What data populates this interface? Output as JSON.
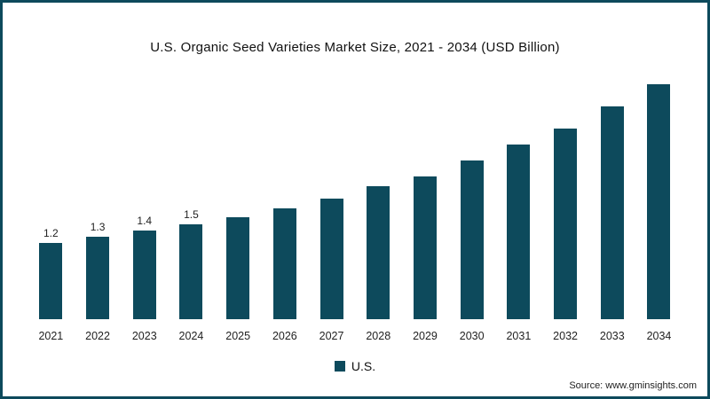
{
  "chart_data": {
    "type": "bar",
    "title": "U.S. Organic Seed Varieties Market Size, 2021 - 2034 (USD Billion)",
    "categories": [
      "2021",
      "2022",
      "2023",
      "2024",
      "2025",
      "2026",
      "2027",
      "2028",
      "2029",
      "2030",
      "2031",
      "2032",
      "2033",
      "2034"
    ],
    "values": [
      1.2,
      1.3,
      1.4,
      1.5,
      1.6,
      1.75,
      1.9,
      2.1,
      2.25,
      2.5,
      2.75,
      3.0,
      3.35,
      3.7
    ],
    "data_labels": [
      "1.2",
      "1.3",
      "1.4",
      "1.5",
      "",
      "",
      "",
      "",
      "",
      "",
      "",
      "",
      "",
      ""
    ],
    "xlabel": "",
    "ylabel": "",
    "ylim": [
      0,
      3.8
    ],
    "grid": false,
    "legend_position": "bottom",
    "legend_label": "U.S.",
    "bar_color": "#0d4a5c",
    "border_color": "#0d4a5c",
    "source": "Source: www.gminsights.com"
  }
}
